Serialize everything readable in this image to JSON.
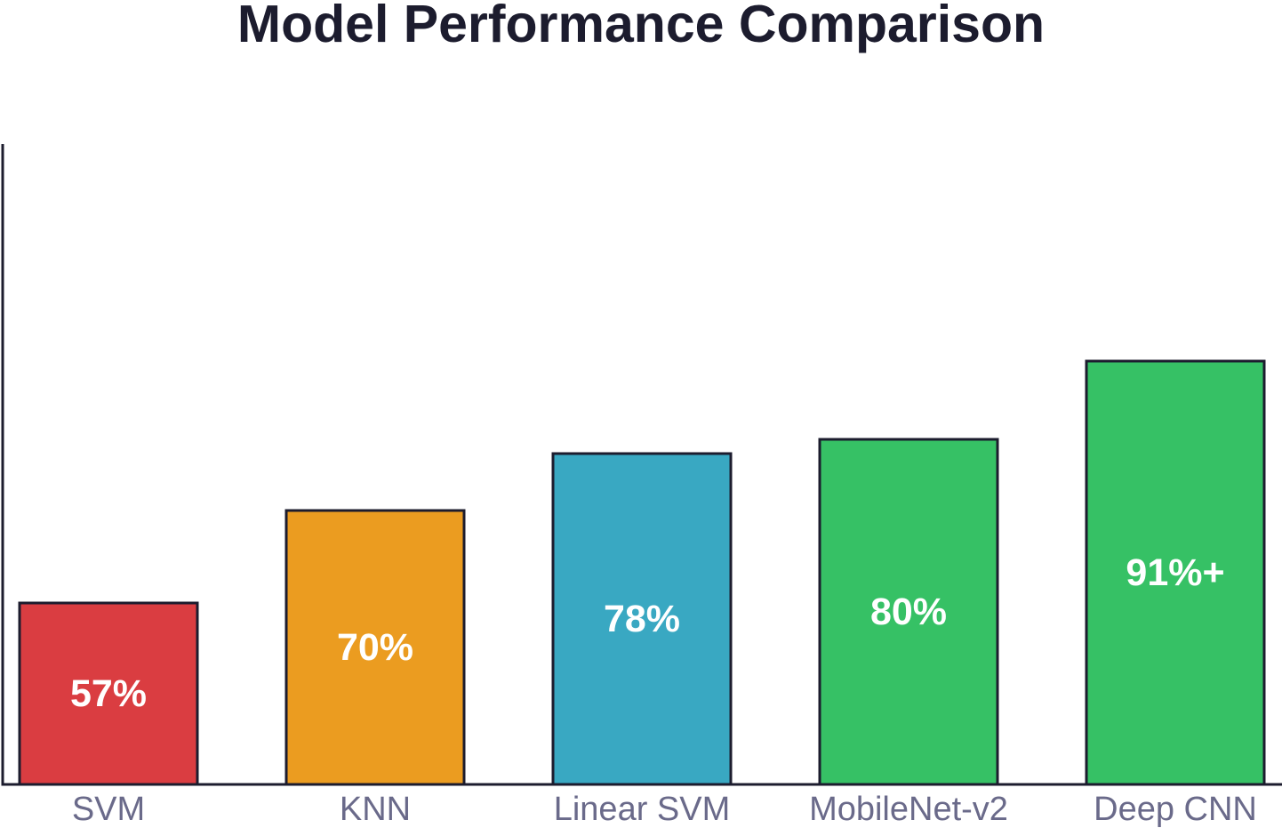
{
  "chart_data": {
    "type": "bar",
    "title": "Model Performance Comparison",
    "xlabel": "",
    "ylabel": "",
    "categories": [
      "SVM",
      "KNN",
      "Linear SVM",
      "MobileNet-v2",
      "Deep CNN"
    ],
    "values": [
      57,
      70,
      78,
      80,
      91
    ],
    "data_labels": [
      "57%",
      "70%",
      "78%",
      "80%",
      "91%+"
    ],
    "colors": [
      "#da3d41",
      "#eb9c20",
      "#39a8c2",
      "#36c165",
      "#36c165"
    ],
    "outline_color": "#1c1c2e",
    "axis_color": "#1c1c2e",
    "label_color": "#ffffff",
    "tick_color": "#6a6a8a",
    "grid": false,
    "legend": "none"
  }
}
